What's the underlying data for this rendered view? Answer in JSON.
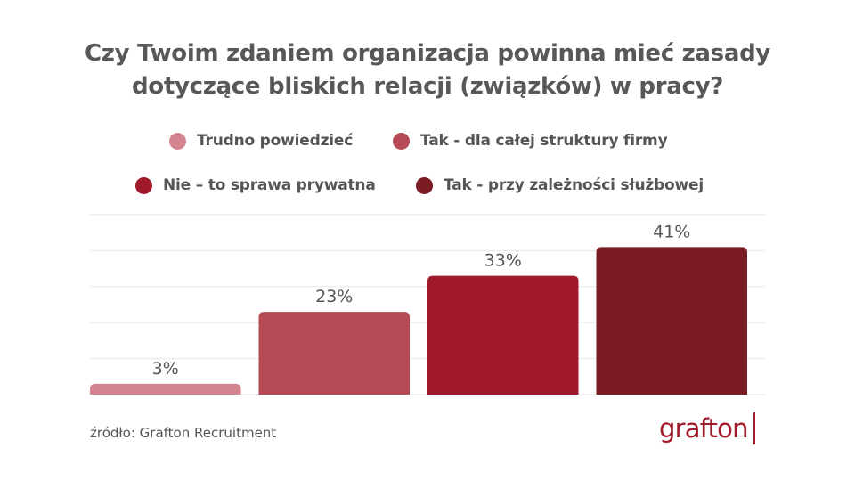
{
  "title_line1": "Czy Twoim zdaniem organizacja powinna mieć zasady",
  "title_line2": "dotyczące bliskich relacji (związków) w pracy?",
  "legend": [
    {
      "label": "Trudno powiedzieć",
      "color": "#d4848f"
    },
    {
      "label": "Tak - dla całej struktury firmy",
      "color": "#b54954"
    },
    {
      "label": "Nie – to sprawa prywatna",
      "color": "#a0192b"
    },
    {
      "label": "Tak - przy zależności służbowej",
      "color": "#7b1b24"
    }
  ],
  "chart_data": {
    "type": "bar",
    "categories": [
      "Trudno powiedzieć",
      "Tak - dla całej struktury firmy",
      "Nie – to sprawa prywatna",
      "Tak - przy zależności służbowej"
    ],
    "values": [
      3,
      23,
      33,
      41
    ],
    "data_labels": [
      "3%",
      "23%",
      "33%",
      "41%"
    ],
    "colors": [
      "#d4848f",
      "#b54954",
      "#a0192b",
      "#7b1b24"
    ],
    "ylim": [
      0,
      50
    ],
    "grid": true,
    "legend_position": "top"
  },
  "source": "źródło: Grafton Recruitment",
  "logo_text": "grafton"
}
